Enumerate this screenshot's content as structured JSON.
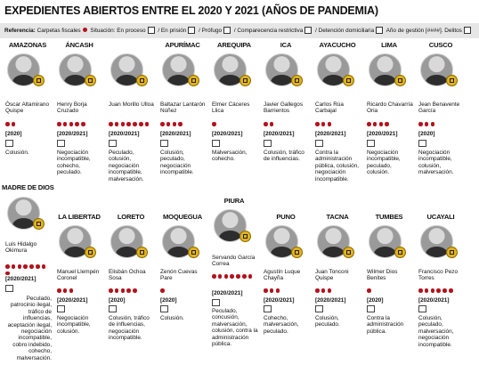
{
  "title": "EXPEDIENTES ABIERTOS ENTRE EL 2020 Y 2021 (AÑOS DE PANDEMIA)",
  "legend": {
    "referencia": "Referencia:",
    "carpetas": "Carpetas fiscales",
    "situacion": "Situación: En proceso",
    "prision": "/ En prisión",
    "profugo": "/ Prófugo",
    "comparecencia": "/ Comparecencia restrictiva",
    "detencion": "/ Detención domiciliaria",
    "anio": "Año de gestión [####]. Delitos"
  },
  "cards": [
    {
      "region": "AMAZONAS",
      "name": "Óscar Altamirano Quispe",
      "dots": 2,
      "year": "[2020]",
      "crimes": "Colusión."
    },
    {
      "region": "ÁNCASH",
      "name": "Henry Borja Cruzado",
      "dots": 5,
      "year": "[2020/2021]",
      "crimes": "Negociación incompatible, cohecho, peculado."
    },
    {
      "region": "",
      "name": "Juan Morillo Ulloa",
      "dots": 7,
      "year": "[2020/2021]",
      "crimes": "Peculado, colusión, negociación incompatible, malversación."
    },
    {
      "region": "APURÍMAC",
      "name": "Baltazar Lantarón Núñez",
      "dots": 4,
      "year": "[2020/2021]",
      "crimes": "Colusión, peculado, negociación incompatible."
    },
    {
      "region": "AREQUIPA",
      "name": "Elmer Cáceres Llica",
      "dots": 1,
      "year": "[2020/2021]",
      "crimes": "Malversación, cohecho."
    },
    {
      "region": "ICA",
      "name": "Javier Gallegos Barrientos",
      "dots": 2,
      "year": "[2020/2021]",
      "crimes": "Colusión, tráfico de influencias."
    },
    {
      "region": "AYACUCHO",
      "name": "Carlos Rúa Carbajal",
      "dots": 3,
      "year": "[2020/2021]",
      "crimes": "Contra la administración pública, colusión, negociación incompatible."
    },
    {
      "region": "LIMA",
      "name": "Ricardo Chavarría Oria",
      "dots": 4,
      "year": "[2020/2021]",
      "crimes": "Negociación incompatible, peculado, colusión."
    },
    {
      "region": "CUSCO",
      "name": "Jean Benavente García",
      "dots": 3,
      "year": "[2020]",
      "crimes": "Negociación incompatible, colusión, malversación."
    },
    {
      "region": "MADRE DE DIOS",
      "name": "Luis Hidalgo Okimura",
      "dots": 8,
      "year": "[2020/2021]",
      "crimes": "Peculado, patrocinio ilegal, tráfico de influencias, aceptación ilegal, negociación incompatible, cobro indebido, cohecho, malversación."
    },
    {
      "region": "LA LIBERTAD",
      "name": "Manuel Llempén Coronel",
      "dots": 3,
      "year": "[2020/2021]",
      "crimes": "Negociación incompatible, colusión."
    },
    {
      "region": "LORETO",
      "name": "Elisbán Ochoa Sosa",
      "dots": 5,
      "year": "[2020]",
      "crimes": "Colusión, tráfico de influencias, negociación incompatible."
    },
    {
      "region": "MOQUEGUA",
      "name": "Zenón Cuevas Pare",
      "dots": 1,
      "year": "[2020]",
      "crimes": "Colusión."
    },
    {
      "region": "PIURA",
      "name": "Servando García Correa",
      "dots": 7,
      "year": "[2020/2021]",
      "crimes": "Peculado, concusión, malversación, colusión, contra la administración pública."
    },
    {
      "region": "PUNO",
      "name": "Agustín Luque Chayña",
      "dots": 3,
      "year": "[2020/2021]",
      "crimes": "Cohecho, malversación, peculado."
    },
    {
      "region": "TACNA",
      "name": "Juan Tonconi Quispe",
      "dots": 3,
      "year": "[2020/2021]",
      "crimes": "Colusión, peculado."
    },
    {
      "region": "TUMBES",
      "name": "Wilmer Dios Benites",
      "dots": 1,
      "year": "[2020]",
      "crimes": "Contra la administración pública."
    },
    {
      "region": "UCAYALI",
      "name": "Francisco Pezo Torres",
      "dots": 6,
      "year": "[2020/2021]",
      "crimes": "Colusión, peculado, malversación, negociación incompatible."
    }
  ]
}
